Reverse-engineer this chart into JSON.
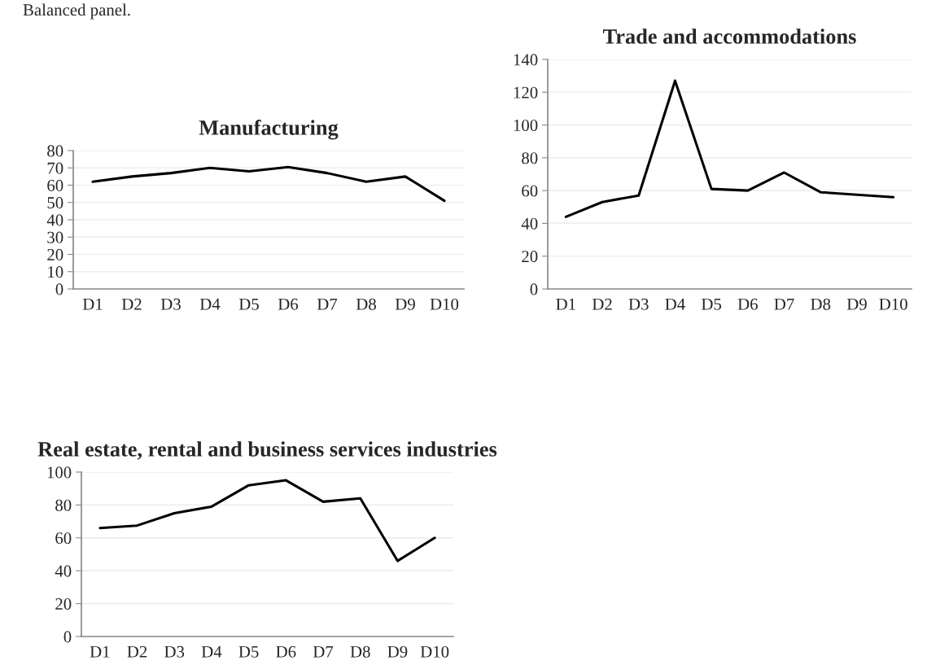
{
  "chart_data": [
    {
      "type": "line",
      "title": "Manufacturing",
      "annotations": [
        "Balanced panel."
      ],
      "categories": [
        "D1",
        "D2",
        "D3",
        "D4",
        "D5",
        "D6",
        "D7",
        "D8",
        "D9",
        "D10"
      ],
      "series": [
        {
          "color": "#000000",
          "values": [
            62,
            65,
            67,
            70,
            68,
            70.5,
            67,
            62,
            65,
            51
          ]
        }
      ],
      "ylim": [
        0,
        80
      ],
      "yticks": [
        0,
        10,
        20,
        30,
        40,
        50,
        60,
        70,
        80
      ],
      "grid": "y",
      "marker": "none",
      "line_style": "solid"
    },
    {
      "type": "line",
      "title": "Trade and accommodations",
      "categories": [
        "D1",
        "D2",
        "D3",
        "D4",
        "D5",
        "D6",
        "D7",
        "D8",
        "D9",
        "D10"
      ],
      "series": [
        {
          "color": "#000000",
          "values": [
            44,
            53,
            57,
            127,
            61,
            60,
            71,
            59,
            57.5,
            56
          ]
        }
      ],
      "ylim": [
        0,
        140
      ],
      "yticks": [
        0,
        20,
        40,
        60,
        80,
        100,
        120,
        140
      ],
      "grid": "y",
      "marker": "none",
      "line_style": "solid"
    },
    {
      "type": "line",
      "title": "Real estate, rental and business services industries",
      "categories": [
        "D1",
        "D2",
        "D3",
        "D4",
        "D5",
        "D6",
        "D7",
        "D8",
        "D9",
        "D10"
      ],
      "series": [
        {
          "color": "#000000",
          "values": [
            66,
            67.5,
            75,
            79,
            92,
            95,
            82,
            84,
            46,
            60
          ]
        }
      ],
      "ylim": [
        0,
        100
      ],
      "yticks": [
        0,
        20,
        40,
        60,
        80,
        100
      ],
      "grid": "y",
      "marker": "none",
      "line_style": "solid"
    }
  ]
}
